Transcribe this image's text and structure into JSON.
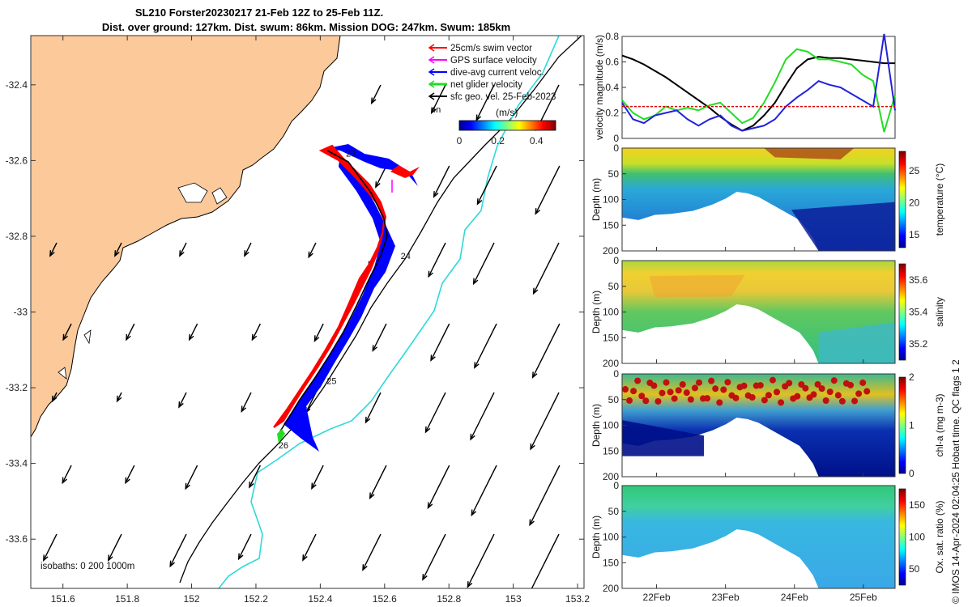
{
  "title_line1": "SL210 Forster20230217 21-Feb 12Z to 25-Feb 11Z.",
  "title_line2": "Dist. over ground: 127km. Dist. swum: 86km. Mission DOG: 247km. Swum: 185km",
  "credit": "© IMOS 14-Apr-2024 02:04:25 Hobart time. QC flags 1  2",
  "map": {
    "xticks": [
      "151.6",
      "151.8",
      "152",
      "152.2",
      "152.4",
      "152.6",
      "152.8",
      "153",
      "153.2"
    ],
    "yticks": [
      "-32.4",
      "-32.6",
      "-32.8",
      "-33",
      "-33.2",
      "-33.4",
      "-33.6"
    ],
    "xlim": [
      151.5,
      153.22
    ],
    "ylim": [
      -33.73,
      -32.27
    ],
    "isobath_label": "isobaths: 0   200   1000m",
    "legend": [
      "25cm/s swim vector",
      "GPS surface velocity",
      "dive-avg current veloc.",
      "net glider velocity",
      "sfc geo. vel. 25-Feb-2023"
    ],
    "legend_colors": [
      "#ff0000",
      "#ff00ff",
      "#0000ff",
      "#22dd22",
      "#000000"
    ],
    "colorbar_title": "(m/s)",
    "colorbar_prefix": "4n",
    "colorbar_ticks": [
      "0",
      "0.2",
      "0.4"
    ],
    "colorbar_range": [
      0,
      0.5
    ],
    "day_markers": [
      {
        "label": "23",
        "lon": 152.48,
        "lat": -32.59
      },
      {
        "label": "24",
        "lon": 152.65,
        "lat": -32.86
      },
      {
        "label": "25",
        "lon": 152.42,
        "lat": -33.19
      },
      {
        "label": "26",
        "lon": 152.27,
        "lat": -33.36
      }
    ],
    "colors": {
      "land": "#fcc99a",
      "isobath_200": "#000000",
      "isobath_1000": "#2ed9d9",
      "swim": "#ff0000",
      "current": "#0000ff",
      "net": "#22dd22",
      "geo": "#000000"
    }
  },
  "chart_data": [
    {
      "type": "line",
      "ylabel": "velocity magnitude (m/s)",
      "ylim": [
        0,
        0.8
      ],
      "yticks": [
        "0",
        "0.2",
        "0.4",
        "0.6",
        "0.8"
      ],
      "x": [
        0,
        0.04,
        0.08,
        0.12,
        0.16,
        0.2,
        0.24,
        0.28,
        0.32,
        0.36,
        0.4,
        0.44,
        0.48,
        0.52,
        0.56,
        0.6,
        0.64,
        0.68,
        0.72,
        0.76,
        0.8,
        0.84,
        0.88,
        0.92,
        0.96,
        1.0
      ],
      "series": [
        {
          "values": [
            0.65,
            0.62,
            0.58,
            0.53,
            0.48,
            0.42,
            0.36,
            0.3,
            0.24,
            0.17,
            0.11,
            0.06,
            0.1,
            0.18,
            0.28,
            0.42,
            0.55,
            0.62,
            0.64,
            0.63,
            0.63,
            0.62,
            0.61,
            0.6,
            0.59,
            0.59
          ]
        },
        {
          "values": [
            0.3,
            0.2,
            0.15,
            0.18,
            0.25,
            0.22,
            0.24,
            0.22,
            0.26,
            0.28,
            0.2,
            0.12,
            0.16,
            0.28,
            0.44,
            0.62,
            0.7,
            0.68,
            0.62,
            0.62,
            0.6,
            0.58,
            0.5,
            0.45,
            0.05,
            0.34
          ]
        },
        {
          "values": [
            0.28,
            0.15,
            0.12,
            0.18,
            0.2,
            0.22,
            0.15,
            0.1,
            0.15,
            0.18,
            0.1,
            0.06,
            0.08,
            0.1,
            0.15,
            0.25,
            0.32,
            0.38,
            0.45,
            0.42,
            0.4,
            0.35,
            0.3,
            0.25,
            0.82,
            0.22
          ]
        },
        {
          "values": [
            0.25,
            0.25,
            0.25,
            0.25,
            0.25,
            0.25,
            0.25,
            0.25,
            0.25,
            0.25,
            0.25,
            0.25,
            0.25,
            0.25,
            0.25,
            0.25,
            0.25,
            0.25,
            0.25,
            0.25,
            0.25,
            0.25,
            0.25,
            0.25,
            0.25,
            0.25
          ]
        }
      ],
      "series_colors": [
        "#000000",
        "#22dd22",
        "#2222dd",
        "#dd0000"
      ]
    },
    {
      "type": "heatmap",
      "ylabel": "Depth (m)",
      "colorbar_label": "temperature (°C)",
      "colorbar_ticks": [
        "15",
        "20",
        "25"
      ],
      "colorbar_range": [
        13,
        28
      ]
    },
    {
      "type": "heatmap",
      "ylabel": "Depth (m)",
      "colorbar_label": "salinity",
      "colorbar_ticks": [
        "35.2",
        "35.4",
        "35.6"
      ],
      "colorbar_range": [
        35.1,
        35.7
      ]
    },
    {
      "type": "heatmap",
      "ylabel": "Depth (m)",
      "colorbar_label": "chl-a (mg m-3)",
      "colorbar_ticks": [
        "0",
        "1",
        "2"
      ],
      "colorbar_range": [
        0,
        2
      ]
    },
    {
      "type": "heatmap",
      "ylabel": "Depth (m)",
      "colorbar_label": "Ox. sat. ratio (%)",
      "colorbar_ticks": [
        "50",
        "100",
        "150"
      ],
      "colorbar_range": [
        25,
        175
      ]
    }
  ],
  "section_common": {
    "depth_ticks": [
      "0",
      "50",
      "100",
      "150",
      "200"
    ],
    "depth_range": [
      0,
      200
    ],
    "xticks": [
      "22Feb",
      "23Feb",
      "24Feb",
      "25Feb"
    ]
  }
}
